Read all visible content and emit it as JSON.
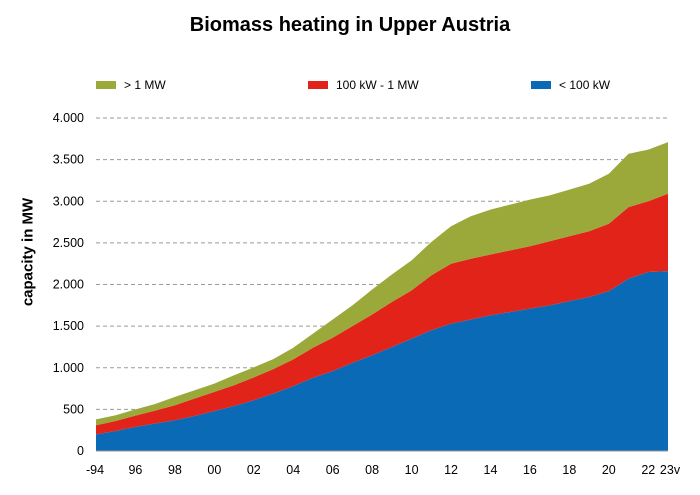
{
  "chart_data": {
    "type": "area",
    "stacked": true,
    "title": "Biomass heating in Upper Austria",
    "ylabel": "capacity in MW",
    "xlabel": "",
    "ylim": [
      0,
      4000
    ],
    "grid": true,
    "legend_position": "top",
    "x": [
      "-94",
      "95",
      "96",
      "97",
      "98",
      "99",
      "2000",
      "01",
      "02",
      "03",
      "04",
      "05",
      "06",
      "07",
      "08",
      "09",
      "10",
      "11",
      "12",
      "13",
      "14",
      "15",
      "16",
      "17",
      "18",
      "19",
      "20",
      "21",
      "22",
      "23v"
    ],
    "x_tick_labels": [
      "-94",
      "96",
      "98",
      "00",
      "02",
      "04",
      "06",
      "08",
      "10",
      "12",
      "14",
      "16",
      "18",
      "20",
      "22",
      "23v"
    ],
    "x_tick_indices": [
      0,
      2,
      4,
      6,
      8,
      10,
      12,
      14,
      16,
      18,
      20,
      22,
      24,
      26,
      28,
      29
    ],
    "y_ticks": [
      0,
      500,
      1000,
      1500,
      2000,
      2500,
      3000,
      3500,
      4000
    ],
    "y_tick_labels": [
      "0",
      "500",
      "1.000",
      "1.500",
      "2.000",
      "2.500",
      "3.000",
      "3.500",
      "4.000"
    ],
    "series": [
      {
        "name": "< 100 kW",
        "color": "#0a6ab6",
        "values": [
          200,
          240,
          290,
          330,
          370,
          420,
          480,
          540,
          610,
          690,
          780,
          880,
          960,
          1060,
          1150,
          1250,
          1350,
          1450,
          1530,
          1580,
          1630,
          1670,
          1710,
          1750,
          1800,
          1850,
          1920,
          2070,
          2150,
          2160
        ]
      },
      {
        "name": "100 kW - 1 MW",
        "color": "#e2231a",
        "values": [
          110,
          120,
          135,
          155,
          180,
          210,
          230,
          250,
          275,
          295,
          320,
          360,
          400,
          440,
          490,
          540,
          580,
          660,
          720,
          730,
          730,
          740,
          750,
          770,
          780,
          790,
          810,
          860,
          850,
          930
        ]
      },
      {
        "name": "> 1 MW",
        "color": "#9aa93a",
        "values": [
          70,
          70,
          75,
          80,
          100,
          100,
          100,
          120,
          120,
          120,
          140,
          170,
          220,
          250,
          300,
          330,
          360,
          400,
          450,
          510,
          540,
          550,
          560,
          550,
          560,
          570,
          600,
          640,
          620,
          620
        ]
      }
    ],
    "legend_order": [
      "> 1 MW",
      "100 kW - 1 MW",
      "< 100 kW"
    ]
  }
}
